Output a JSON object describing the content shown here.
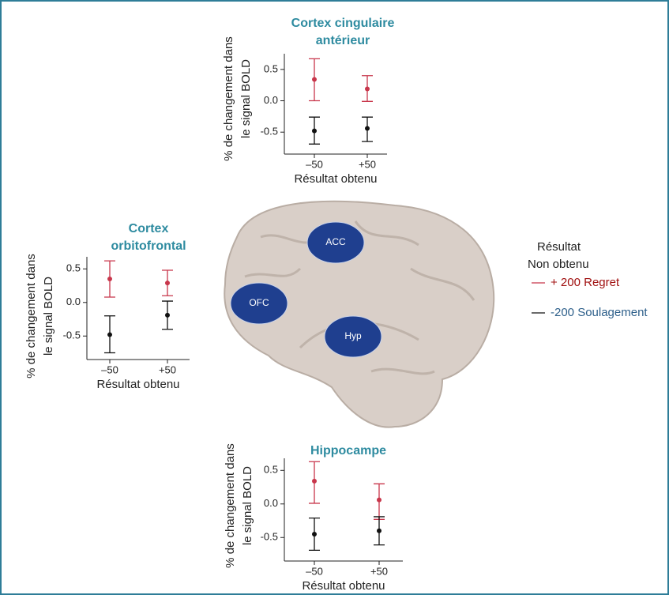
{
  "chart_data": [
    {
      "type": "errorbar",
      "title": [
        "Cortex cingulaire",
        "antérieur"
      ],
      "ylabel": [
        "% de changement dans",
        "le signal BOLD"
      ],
      "xlabel": "Résultat obtenu",
      "categories": [
        "–50",
        "+50"
      ],
      "ylim": [
        -0.85,
        0.75
      ],
      "yticks": [
        0.5,
        {
          "value": 0,
          "label": "0.0"
        },
        -0.5
      ],
      "series": [
        {
          "color": "#c8364b",
          "values": [
            0.34,
            0.19
          ],
          "lower": [
            0.0,
            -0.01
          ],
          "upper": [
            0.67,
            0.4
          ]
        },
        {
          "color": "#111111",
          "values": [
            -0.48,
            -0.44
          ],
          "lower": [
            -0.69,
            -0.65
          ],
          "upper": [
            -0.26,
            -0.26
          ]
        }
      ]
    },
    {
      "type": "errorbar",
      "title": [
        "Cortex",
        "orbitofrontal"
      ],
      "ylabel": [
        "% de changement dans",
        "le signal BOLD"
      ],
      "xlabel": "Résultat obtenu",
      "categories": [
        "–50",
        "+50"
      ],
      "ylim": [
        -0.85,
        0.68
      ],
      "yticks": [
        0.5,
        {
          "value": 0,
          "label": "0.0"
        },
        -0.5
      ],
      "series": [
        {
          "color": "#c8364b",
          "values": [
            0.35,
            0.29
          ],
          "lower": [
            0.08,
            0.1
          ],
          "upper": [
            0.62,
            0.48
          ]
        },
        {
          "color": "#111111",
          "values": [
            -0.48,
            -0.19
          ],
          "lower": [
            -0.75,
            -0.4
          ],
          "upper": [
            -0.2,
            0.02
          ]
        }
      ]
    },
    {
      "type": "errorbar",
      "title": [
        "Hippocampe"
      ],
      "ylabel": [
        "% de changement dans",
        "le signal BOLD"
      ],
      "xlabel": "Résultat obtenu",
      "categories": [
        "–50",
        "+50"
      ],
      "ylim": [
        -0.85,
        0.68
      ],
      "yticks": [
        0.5,
        {
          "value": 0,
          "label": "0.0"
        },
        -0.5
      ],
      "series": [
        {
          "color": "#c8364b",
          "values": [
            0.34,
            0.06
          ],
          "lower": [
            0.01,
            -0.23
          ],
          "upper": [
            0.63,
            0.3
          ]
        },
        {
          "color": "#111111",
          "values": [
            -0.45,
            -0.4
          ],
          "lower": [
            -0.69,
            -0.61
          ],
          "upper": [
            -0.21,
            -0.19
          ]
        }
      ]
    }
  ],
  "brain": {
    "regions": [
      "ACC",
      "OFC",
      "Hyp"
    ]
  },
  "legend": {
    "title": [
      "Résultat",
      "Non obtenu"
    ],
    "entries": [
      {
        "label": "+ 200 Regret",
        "color": "#c8364b",
        "text_color": "#a01010"
      },
      {
        "label": "-200 Soulagement",
        "color": "#111111",
        "text_color": "#2d5f8a"
      }
    ]
  }
}
